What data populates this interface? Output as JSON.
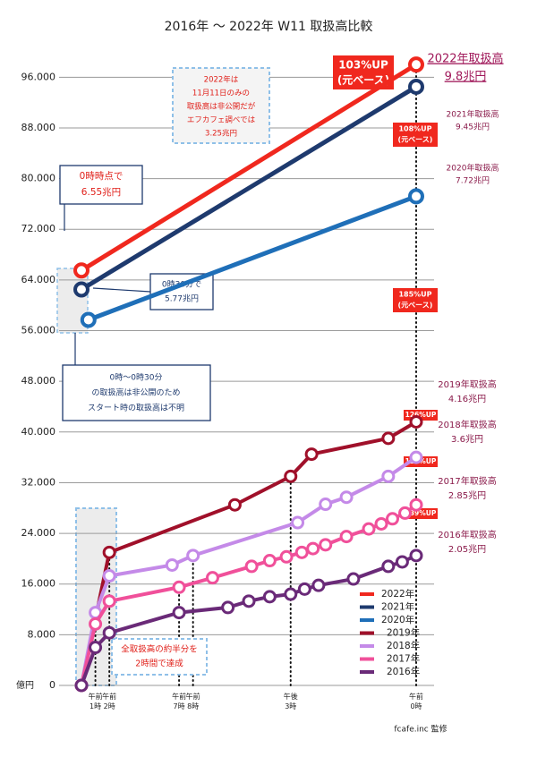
{
  "chart_data": {
    "type": "line",
    "title": "2016年 〜 2022年 W11 取扱高比較",
    "unit_label": "億円",
    "credit": "fcafe.inc 監修",
    "xlim": [
      0,
      24
    ],
    "xticks": [
      {
        "value": 1,
        "label": "午前1時"
      },
      {
        "value": 2,
        "label": "午前2時"
      },
      {
        "value": 7,
        "label": "午前7時"
      },
      {
        "value": 8,
        "label": "午前8時"
      },
      {
        "value": 15,
        "label": "午後3時"
      },
      {
        "value": 24,
        "label": "午前0時"
      }
    ],
    "ylim": [
      0,
      100000
    ],
    "yticks": [
      0,
      {
        "value": 8000,
        "label": "8.000"
      },
      {
        "value": 16000,
        "label": "16.000"
      },
      {
        "value": 24000,
        "label": "24.000"
      },
      {
        "value": 32000,
        "label": "32.000"
      },
      {
        "value": 40000,
        "label": "40.000"
      },
      {
        "value": 48000,
        "label": "48.000"
      },
      {
        "value": 56000,
        "label": "56.000"
      },
      {
        "value": 64000,
        "label": "64.000"
      },
      {
        "value": 72000,
        "label": "72.000"
      },
      {
        "value": 80000,
        "label": "80.000"
      },
      {
        "value": 88000,
        "label": "88.000"
      },
      {
        "value": 96000,
        "label": "96.000"
      }
    ],
    "grid": true,
    "legend": "lower right",
    "series": [
      {
        "name": "2022年",
        "color": "#f0281e",
        "x": [
          0,
          24
        ],
        "values": [
          65500,
          98000
        ]
      },
      {
        "name": "2021年",
        "color": "#1e3a6e",
        "x": [
          0,
          24
        ],
        "values": [
          62500,
          94500
        ]
      },
      {
        "name": "2020年",
        "color": "#1f6fb8",
        "x": [
          0.5,
          24
        ],
        "values": [
          57700,
          77200
        ]
      },
      {
        "name": "2019年",
        "color": "#a0102a",
        "x": [
          0,
          2,
          11,
          15,
          16.5,
          22,
          24
        ],
        "values": [
          0,
          21000,
          28500,
          33000,
          36500,
          39000,
          41600
        ]
      },
      {
        "name": "2018年",
        "color": "#c48ae8",
        "x": [
          0,
          1,
          2,
          6.5,
          8,
          15.5,
          17.5,
          19,
          22,
          24
        ],
        "values": [
          0,
          11500,
          17300,
          19000,
          20500,
          25700,
          28600,
          29700,
          33000,
          36000
        ]
      },
      {
        "name": "2017年",
        "color": "#f0509a",
        "x": [
          0,
          1,
          2,
          7,
          9.4,
          12.2,
          13.5,
          14.7,
          15.8,
          16.6,
          17.5,
          19,
          20.6,
          21.5,
          22.3,
          23.2,
          24
        ],
        "values": [
          0,
          9700,
          13300,
          15500,
          17000,
          18800,
          19700,
          20300,
          21000,
          21600,
          22200,
          23500,
          24700,
          25500,
          26300,
          27200,
          28500
        ]
      },
      {
        "name": "2016年",
        "color": "#6a2a78",
        "x": [
          0,
          1,
          2,
          7,
          10.5,
          12,
          13.5,
          15,
          16,
          17,
          19.5,
          22,
          23,
          24
        ],
        "values": [
          0,
          6000,
          8300,
          11500,
          12300,
          13300,
          14000,
          14400,
          15200,
          15800,
          16800,
          18800,
          19500,
          20500
        ]
      }
    ],
    "annotations": [
      {
        "text": [
          "103%UP",
          "(元ベース)"
        ]
      },
      {
        "text": [
          "2022年取扱高",
          "9.8兆円"
        ]
      },
      {
        "text": [
          "2021年取扱高",
          "9.45兆円"
        ]
      },
      {
        "text": [
          "2020年取扱高",
          "7.72兆円"
        ]
      },
      {
        "text": [
          "108%UP",
          "(元ベース)"
        ]
      },
      {
        "text": [
          "185%UP",
          "(元ベース)"
        ]
      },
      {
        "text": [
          "2019年取扱高",
          "4.16兆円"
        ]
      },
      {
        "text": [
          "2018年取扱高",
          "3.6兆円"
        ]
      },
      {
        "text": [
          "2017年取扱高",
          "2.85兆円"
        ]
      },
      {
        "text": [
          "2016年取扱高",
          "2.05兆円"
        ]
      },
      {
        "text": [
          "126%UP"
        ]
      },
      {
        "text": [
          "127%UP"
        ]
      },
      {
        "text": [
          "139%UP"
        ]
      },
      {
        "text": [
          "2022年は",
          "11月11日のみの",
          "取扱高は非公開だが",
          "エフカフェ調べでは",
          "3.25兆円"
        ]
      },
      {
        "text": [
          "0時時点で",
          "6.55兆円"
        ]
      },
      {
        "text": [
          "0時30分で",
          "5.77兆円"
        ]
      },
      {
        "text": [
          "0時〜0時30分",
          "の取扱高は非公開のため",
          "スタート時の取扱高は不明"
        ]
      },
      {
        "text": [
          "全取扱高の約半分を",
          "2時間で達成"
        ]
      }
    ]
  }
}
